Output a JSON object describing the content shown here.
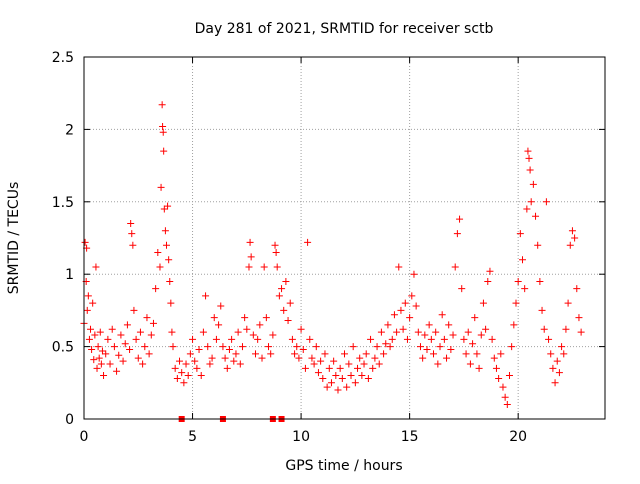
{
  "chart_data": {
    "type": "scatter",
    "title": "Day 281 of 2021, SRMTID for receiver sctb",
    "xlabel": "GPS time / hours",
    "ylabel": "SRMTID / TECUs",
    "xlim": [
      0,
      24
    ],
    "ylim": [
      0,
      2.5
    ],
    "grid": true,
    "marker": "+",
    "color": "#ff0000",
    "x_ticks": [
      {
        "value": 0,
        "label": "0"
      },
      {
        "value": 5,
        "label": "5"
      },
      {
        "value": 10,
        "label": "10"
      },
      {
        "value": 15,
        "label": "15"
      },
      {
        "value": 20,
        "label": "20"
      }
    ],
    "y_ticks": [
      {
        "value": 0,
        "label": "0"
      },
      {
        "value": 0.5,
        "label": "0.5"
      },
      {
        "value": 1,
        "label": "1"
      },
      {
        "value": 1.5,
        "label": "1.5"
      },
      {
        "value": 2,
        "label": "2"
      },
      {
        "value": 2.5,
        "label": "2.5"
      }
    ],
    "gap_markers": [
      {
        "x": 4.5,
        "y": 0
      },
      {
        "x": 6.4,
        "y": 0
      },
      {
        "x": 8.7,
        "y": 0
      },
      {
        "x": 9.1,
        "y": 0
      }
    ],
    "series": [
      {
        "name": "SRMTID",
        "points": [
          [
            0.0,
            0.66
          ],
          [
            0.05,
            1.22
          ],
          [
            0.1,
            0.95
          ],
          [
            0.12,
            1.18
          ],
          [
            0.15,
            0.75
          ],
          [
            0.2,
            0.85
          ],
          [
            0.25,
            0.55
          ],
          [
            0.3,
            0.62
          ],
          [
            0.35,
            0.48
          ],
          [
            0.4,
            0.8
          ],
          [
            0.45,
            0.41
          ],
          [
            0.5,
            0.58
          ],
          [
            0.55,
            1.05
          ],
          [
            0.6,
            0.35
          ],
          [
            0.65,
            0.5
          ],
          [
            0.7,
            0.42
          ],
          [
            0.75,
            0.6
          ],
          [
            0.8,
            0.38
          ],
          [
            0.85,
            0.47
          ],
          [
            0.9,
            0.3
          ],
          [
            1.0,
            0.45
          ],
          [
            1.1,
            0.55
          ],
          [
            1.2,
            0.38
          ],
          [
            1.3,
            0.62
          ],
          [
            1.4,
            0.5
          ],
          [
            1.5,
            0.33
          ],
          [
            1.6,
            0.44
          ],
          [
            1.7,
            0.58
          ],
          [
            1.8,
            0.4
          ],
          [
            1.9,
            0.52
          ],
          [
            2.0,
            0.65
          ],
          [
            2.1,
            0.48
          ],
          [
            2.15,
            1.35
          ],
          [
            2.2,
            1.28
          ],
          [
            2.25,
            1.2
          ],
          [
            2.3,
            0.75
          ],
          [
            2.4,
            0.55
          ],
          [
            2.5,
            0.42
          ],
          [
            2.6,
            0.6
          ],
          [
            2.7,
            0.38
          ],
          [
            2.8,
            0.5
          ],
          [
            2.9,
            0.7
          ],
          [
            3.0,
            0.45
          ],
          [
            3.1,
            0.58
          ],
          [
            3.2,
            0.66
          ],
          [
            3.3,
            0.9
          ],
          [
            3.4,
            1.15
          ],
          [
            3.5,
            1.05
          ],
          [
            3.55,
            1.6
          ],
          [
            3.6,
            2.17
          ],
          [
            3.62,
            2.02
          ],
          [
            3.65,
            1.98
          ],
          [
            3.67,
            1.85
          ],
          [
            3.7,
            1.45
          ],
          [
            3.75,
            1.3
          ],
          [
            3.8,
            1.2
          ],
          [
            3.85,
            1.47
          ],
          [
            3.9,
            1.1
          ],
          [
            3.95,
            0.95
          ],
          [
            4.0,
            0.8
          ],
          [
            4.05,
            0.6
          ],
          [
            4.1,
            0.5
          ],
          [
            4.2,
            0.35
          ],
          [
            4.3,
            0.28
          ],
          [
            4.4,
            0.4
          ],
          [
            4.5,
            0.32
          ],
          [
            4.6,
            0.25
          ],
          [
            4.7,
            0.38
          ],
          [
            4.8,
            0.3
          ],
          [
            4.9,
            0.45
          ],
          [
            5.0,
            0.55
          ],
          [
            5.1,
            0.4
          ],
          [
            5.2,
            0.35
          ],
          [
            5.3,
            0.48
          ],
          [
            5.4,
            0.3
          ],
          [
            5.5,
            0.6
          ],
          [
            5.6,
            0.85
          ],
          [
            5.7,
            0.5
          ],
          [
            5.8,
            0.38
          ],
          [
            5.9,
            0.42
          ],
          [
            6.0,
            0.7
          ],
          [
            6.1,
            0.55
          ],
          [
            6.2,
            0.65
          ],
          [
            6.3,
            0.78
          ],
          [
            6.4,
            0.5
          ],
          [
            6.5,
            0.42
          ],
          [
            6.6,
            0.35
          ],
          [
            6.7,
            0.48
          ],
          [
            6.8,
            0.55
          ],
          [
            6.9,
            0.4
          ],
          [
            7.0,
            0.45
          ],
          [
            7.1,
            0.6
          ],
          [
            7.2,
            0.38
          ],
          [
            7.3,
            0.5
          ],
          [
            7.4,
            0.7
          ],
          [
            7.5,
            0.62
          ],
          [
            7.6,
            1.05
          ],
          [
            7.65,
            1.22
          ],
          [
            7.7,
            1.12
          ],
          [
            7.8,
            0.58
          ],
          [
            7.9,
            0.45
          ],
          [
            8.0,
            0.55
          ],
          [
            8.1,
            0.65
          ],
          [
            8.2,
            0.42
          ],
          [
            8.3,
            1.05
          ],
          [
            8.4,
            0.7
          ],
          [
            8.5,
            0.5
          ],
          [
            8.6,
            0.45
          ],
          [
            8.7,
            0.58
          ],
          [
            8.8,
            1.2
          ],
          [
            8.85,
            1.15
          ],
          [
            8.9,
            1.05
          ],
          [
            9.0,
            0.85
          ],
          [
            9.1,
            0.9
          ],
          [
            9.2,
            0.75
          ],
          [
            9.3,
            0.95
          ],
          [
            9.4,
            0.68
          ],
          [
            9.5,
            0.8
          ],
          [
            9.6,
            0.55
          ],
          [
            9.7,
            0.45
          ],
          [
            9.8,
            0.5
          ],
          [
            9.9,
            0.42
          ],
          [
            10.0,
            0.62
          ],
          [
            10.1,
            0.48
          ],
          [
            10.2,
            0.35
          ],
          [
            10.3,
            1.22
          ],
          [
            10.4,
            0.55
          ],
          [
            10.5,
            0.42
          ],
          [
            10.6,
            0.38
          ],
          [
            10.7,
            0.5
          ],
          [
            10.8,
            0.32
          ],
          [
            10.9,
            0.4
          ],
          [
            11.0,
            0.28
          ],
          [
            11.1,
            0.45
          ],
          [
            11.2,
            0.22
          ],
          [
            11.3,
            0.35
          ],
          [
            11.4,
            0.25
          ],
          [
            11.5,
            0.4
          ],
          [
            11.6,
            0.3
          ],
          [
            11.7,
            0.2
          ],
          [
            11.8,
            0.35
          ],
          [
            11.9,
            0.28
          ],
          [
            12.0,
            0.45
          ],
          [
            12.1,
            0.22
          ],
          [
            12.2,
            0.38
          ],
          [
            12.3,
            0.3
          ],
          [
            12.4,
            0.5
          ],
          [
            12.5,
            0.25
          ],
          [
            12.6,
            0.35
          ],
          [
            12.7,
            0.42
          ],
          [
            12.8,
            0.3
          ],
          [
            12.9,
            0.38
          ],
          [
            13.0,
            0.45
          ],
          [
            13.1,
            0.28
          ],
          [
            13.2,
            0.55
          ],
          [
            13.3,
            0.35
          ],
          [
            13.4,
            0.42
          ],
          [
            13.5,
            0.5
          ],
          [
            13.6,
            0.38
          ],
          [
            13.7,
            0.6
          ],
          [
            13.8,
            0.45
          ],
          [
            13.9,
            0.52
          ],
          [
            14.0,
            0.65
          ],
          [
            14.1,
            0.5
          ],
          [
            14.2,
            0.55
          ],
          [
            14.3,
            0.72
          ],
          [
            14.4,
            0.6
          ],
          [
            14.5,
            1.05
          ],
          [
            14.6,
            0.75
          ],
          [
            14.7,
            0.62
          ],
          [
            14.8,
            0.8
          ],
          [
            14.9,
            0.55
          ],
          [
            15.0,
            0.7
          ],
          [
            15.1,
            0.85
          ],
          [
            15.2,
            1.0
          ],
          [
            15.3,
            0.78
          ],
          [
            15.4,
            0.6
          ],
          [
            15.5,
            0.5
          ],
          [
            15.6,
            0.42
          ],
          [
            15.7,
            0.58
          ],
          [
            15.8,
            0.48
          ],
          [
            15.9,
            0.65
          ],
          [
            16.0,
            0.55
          ],
          [
            16.1,
            0.45
          ],
          [
            16.2,
            0.6
          ],
          [
            16.3,
            0.38
          ],
          [
            16.4,
            0.5
          ],
          [
            16.5,
            0.72
          ],
          [
            16.6,
            0.55
          ],
          [
            16.7,
            0.42
          ],
          [
            16.8,
            0.65
          ],
          [
            16.9,
            0.48
          ],
          [
            17.0,
            0.58
          ],
          [
            17.1,
            1.05
          ],
          [
            17.2,
            1.28
          ],
          [
            17.3,
            1.38
          ],
          [
            17.4,
            0.9
          ],
          [
            17.5,
            0.55
          ],
          [
            17.6,
            0.45
          ],
          [
            17.7,
            0.6
          ],
          [
            17.8,
            0.38
          ],
          [
            17.9,
            0.52
          ],
          [
            18.0,
            0.7
          ],
          [
            18.1,
            0.45
          ],
          [
            18.2,
            0.35
          ],
          [
            18.3,
            0.58
          ],
          [
            18.4,
            0.8
          ],
          [
            18.5,
            0.62
          ],
          [
            18.6,
            0.95
          ],
          [
            18.7,
            1.02
          ],
          [
            18.8,
            0.55
          ],
          [
            18.9,
            0.42
          ],
          [
            19.0,
            0.35
          ],
          [
            19.1,
            0.28
          ],
          [
            19.2,
            0.45
          ],
          [
            19.3,
            0.22
          ],
          [
            19.4,
            0.15
          ],
          [
            19.5,
            0.1
          ],
          [
            19.6,
            0.3
          ],
          [
            19.7,
            0.5
          ],
          [
            19.8,
            0.65
          ],
          [
            19.9,
            0.8
          ],
          [
            20.0,
            0.95
          ],
          [
            20.1,
            1.28
          ],
          [
            20.2,
            1.1
          ],
          [
            20.3,
            0.9
          ],
          [
            20.4,
            1.45
          ],
          [
            20.45,
            1.85
          ],
          [
            20.5,
            1.8
          ],
          [
            20.55,
            1.72
          ],
          [
            20.6,
            1.5
          ],
          [
            20.7,
            1.62
          ],
          [
            20.8,
            1.4
          ],
          [
            20.9,
            1.2
          ],
          [
            21.0,
            0.95
          ],
          [
            21.1,
            0.75
          ],
          [
            21.2,
            0.62
          ],
          [
            21.3,
            1.5
          ],
          [
            21.4,
            0.55
          ],
          [
            21.5,
            0.45
          ],
          [
            21.6,
            0.35
          ],
          [
            21.7,
            0.25
          ],
          [
            21.8,
            0.4
          ],
          [
            21.9,
            0.32
          ],
          [
            22.0,
            0.5
          ],
          [
            22.1,
            0.45
          ],
          [
            22.2,
            0.62
          ],
          [
            22.3,
            0.8
          ],
          [
            22.4,
            1.2
          ],
          [
            22.5,
            1.3
          ],
          [
            22.6,
            1.25
          ],
          [
            22.7,
            0.9
          ],
          [
            22.8,
            0.7
          ],
          [
            22.9,
            0.6
          ]
        ]
      }
    ]
  }
}
